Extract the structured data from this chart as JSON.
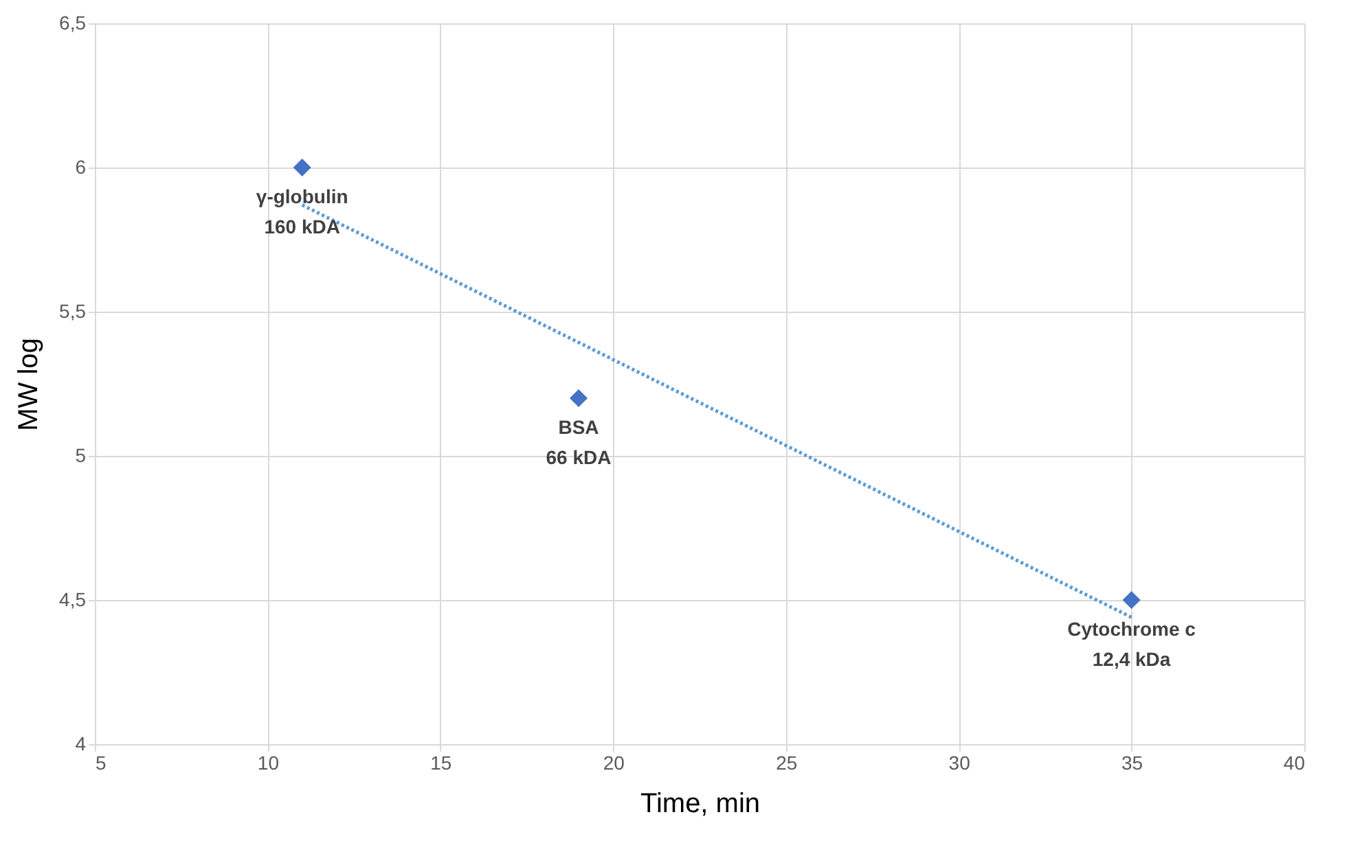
{
  "chart_data": {
    "type": "scatter",
    "xlabel": "Time, min",
    "ylabel": "MW log",
    "xlim": [
      5,
      40
    ],
    "xticks": [
      5,
      10,
      15,
      20,
      25,
      30,
      35,
      40
    ],
    "ylim": [
      4,
      6.5
    ],
    "yticks": [
      4,
      {
        "value": 4.5,
        "label": "4,5"
      },
      5,
      {
        "value": 5.5,
        "label": "5,5"
      },
      6,
      {
        "value": 6.5,
        "label": "6,5"
      }
    ],
    "grid": true,
    "series": [
      {
        "color": "#4472c4",
        "marker": "diamond",
        "x": [
          11,
          19,
          35
        ],
        "values": [
          6.0,
          5.2,
          4.5
        ]
      },
      {
        "type": "line",
        "color": "#5b9bd5",
        "line_style": "dotted",
        "marker": "none",
        "x": [
          11,
          35
        ],
        "values": [
          5.87,
          4.44
        ]
      }
    ],
    "annotations": [
      {
        "text": "γ-globulin\n160 kDA",
        "x": 11,
        "y": 6.0
      },
      {
        "text": "BSA\n66 kDA",
        "x": 19,
        "y": 5.2
      },
      {
        "text": "Cytochrome c\n12,4 kDa",
        "x": 35,
        "y": 4.5
      }
    ]
  }
}
